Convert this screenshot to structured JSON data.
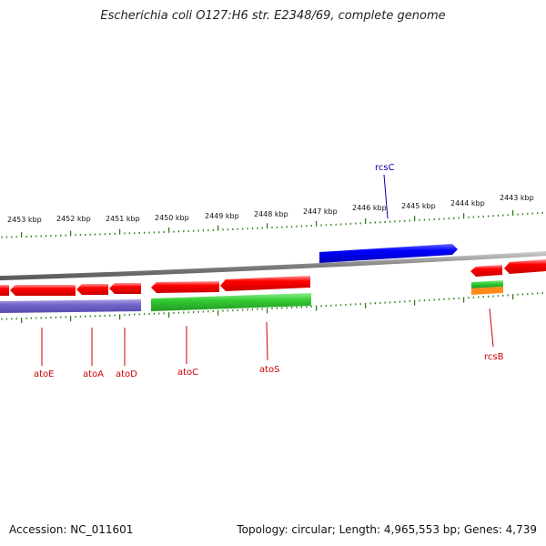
{
  "title": "Escherichia coli O127:H6 str. E2348/69, complete genome",
  "footer": {
    "accession": "Accession: NC_011601",
    "summary": "Topology: circular; Length: 4,965,553 bp; Genes: 4,739"
  },
  "colors": {
    "backbone": "#808080",
    "tick": "#2e7d1a",
    "gene_red": "#ff0000",
    "gene_blue": "#0000ff",
    "cds_purple": "#7065c8",
    "cds_green": "#33cc33",
    "label_red": "#cc0000",
    "label_blue": "#0000aa"
  },
  "scale": {
    "unit": "kbp",
    "labels": [
      "2453 kbp",
      "2452 kbp",
      "2451 kbp",
      "2450 kbp",
      "2449 kbp",
      "2448 kbp",
      "2447 kbp",
      "2446 kbp",
      "2445 kbp",
      "2444 kbp",
      "2443 kbp"
    ]
  },
  "gene_labels": [
    {
      "name": "atoE",
      "strand": "reverse"
    },
    {
      "name": "atoA",
      "strand": "reverse"
    },
    {
      "name": "atoD",
      "strand": "reverse"
    },
    {
      "name": "atoC",
      "strand": "reverse"
    },
    {
      "name": "atoS",
      "strand": "reverse"
    },
    {
      "name": "rcsC",
      "strand": "forward"
    },
    {
      "name": "rcsB",
      "strand": "reverse"
    }
  ]
}
